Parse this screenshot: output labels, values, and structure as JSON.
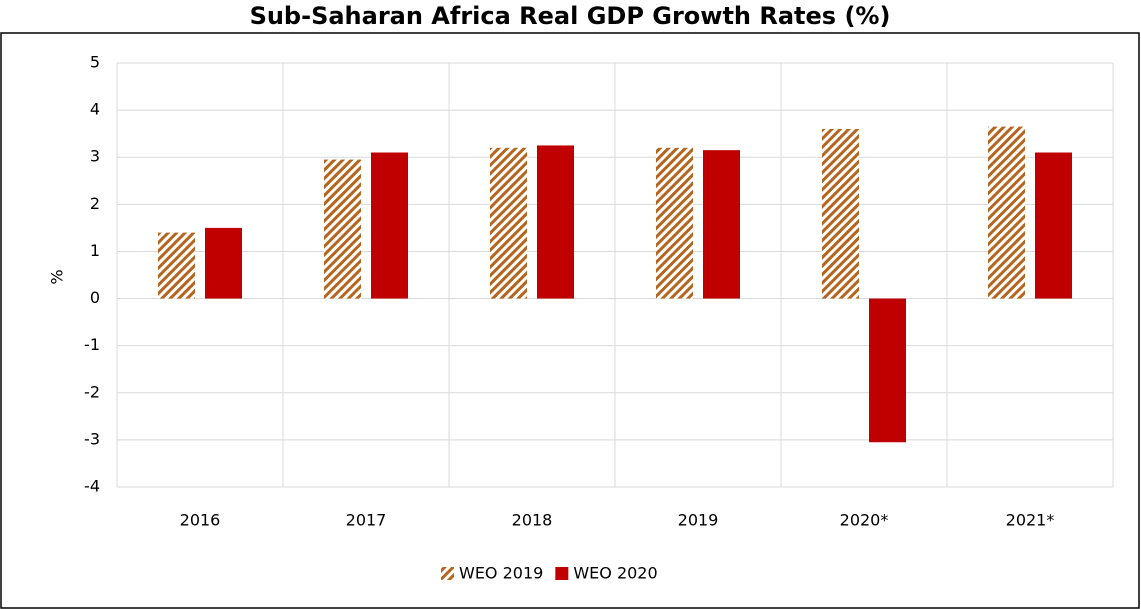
{
  "chart_data": {
    "type": "bar",
    "title": "Sub-Saharan Africa Real GDP Growth Rates (%)",
    "y_label": "%",
    "categories": [
      "2016",
      "2017",
      "2018",
      "2019",
      "2020*",
      "2021*"
    ],
    "series": [
      {
        "name": "WEO 2019",
        "color": "#b5651d",
        "pattern": "hatch",
        "values": [
          1.4,
          2.95,
          3.2,
          3.2,
          3.6,
          3.65
        ]
      },
      {
        "name": "WEO 2020",
        "color": "#c00000",
        "values": [
          1.5,
          3.1,
          3.25,
          3.15,
          -3.05,
          3.1
        ]
      }
    ],
    "ylim": [
      -4,
      5
    ],
    "yticks": [
      -4,
      -3,
      -2,
      -1,
      0,
      1,
      2,
      3,
      4,
      5
    ],
    "grid": true,
    "legend": "bottom"
  }
}
